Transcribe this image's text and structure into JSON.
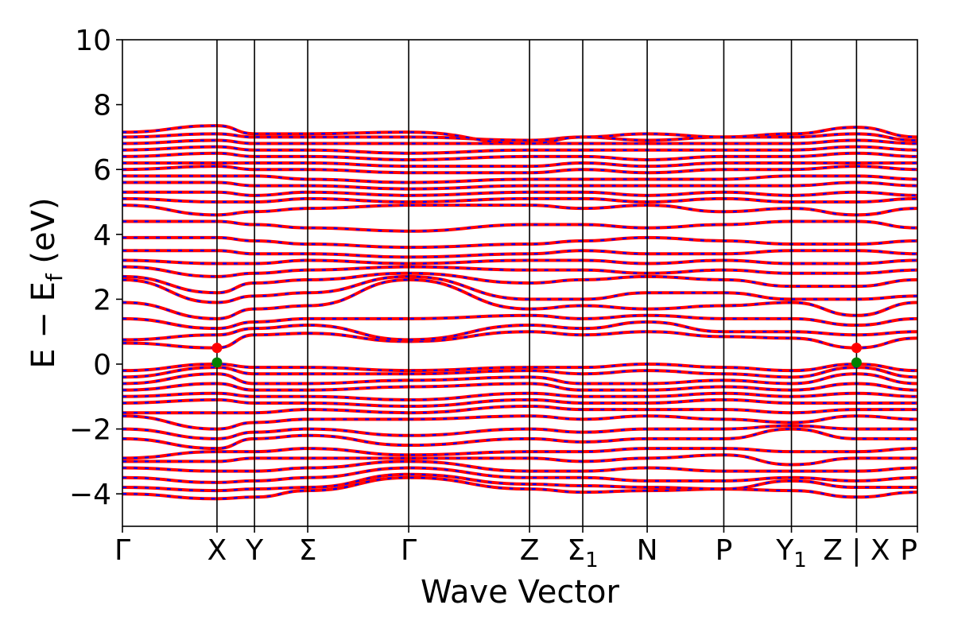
{
  "chart_data": {
    "type": "line",
    "title": "",
    "xlabel": "Wave Vector",
    "ylabel_parts": [
      "E − E",
      "f",
      " (eV)"
    ],
    "ylim": [
      -5,
      10
    ],
    "yticks": [
      "−4",
      "−2",
      "0",
      "2",
      "4",
      "6",
      "8",
      "10"
    ],
    "ytick_values": [
      -4,
      -2,
      0,
      2,
      4,
      6,
      8,
      10
    ],
    "xlim": [
      0,
      2.48
    ],
    "kpoints": [
      {
        "label": "Γ",
        "x": 0.0
      },
      {
        "label": "X",
        "x": 0.295
      },
      {
        "label": "Y",
        "x": 0.412
      },
      {
        "label": "Σ",
        "x": 0.578
      },
      {
        "label": "Γ",
        "x": 0.893
      },
      {
        "label": "Z",
        "x": 1.27
      },
      {
        "label": "Σ",
        "sub": "1",
        "x": 1.436
      },
      {
        "label": "N",
        "x": 1.637
      },
      {
        "label": "P",
        "x": 1.876
      },
      {
        "label": "Y",
        "sub": "1",
        "x": 2.087
      },
      {
        "label": "Z | X",
        "x": 2.29
      },
      {
        "label": "P",
        "x": 2.48
      }
    ],
    "series_colors": {
      "dft": "#ff0000",
      "wannier": "#0000ff"
    },
    "grid": false,
    "markers": [
      {
        "x": 0.295,
        "y": 0.5,
        "color": "#ff0000",
        "meaning": "CBM"
      },
      {
        "x": 0.295,
        "y": 0.05,
        "color": "#008000",
        "meaning": "VBM"
      },
      {
        "x": 2.29,
        "y": 0.5,
        "color": "#ff0000",
        "meaning": "CBM"
      },
      {
        "x": 2.29,
        "y": 0.05,
        "color": "#008000",
        "meaning": "VBM"
      }
    ],
    "bands": [
      {
        "y": [
          -4.0,
          -4.15,
          -4.1,
          -3.9,
          -3.5,
          -3.85,
          -3.95,
          -3.9,
          -3.85,
          -3.9,
          -4.1,
          -3.95
        ]
      },
      {
        "y": [
          -3.8,
          -3.9,
          -3.85,
          -3.8,
          -3.4,
          -3.7,
          -3.75,
          -3.8,
          -3.85,
          -3.6,
          -3.8,
          -3.8
        ]
      },
      {
        "y": [
          -3.5,
          -3.65,
          -3.6,
          -3.5,
          -3.2,
          -3.5,
          -3.5,
          -3.6,
          -3.6,
          -3.5,
          -3.6,
          -3.5
        ]
      },
      {
        "y": [
          -3.2,
          -3.3,
          -3.3,
          -3.2,
          -3.0,
          -3.3,
          -3.3,
          -3.2,
          -3.3,
          -3.3,
          -3.3,
          -3.2
        ]
      },
      {
        "y": [
          -3.0,
          -3.0,
          -2.9,
          -2.9,
          -2.9,
          -2.9,
          -3.0,
          -2.9,
          -2.8,
          -3.1,
          -2.9,
          -2.9
        ]
      },
      {
        "y": [
          -2.9,
          -2.7,
          -2.7,
          -2.6,
          -2.8,
          -2.7,
          -2.7,
          -2.6,
          -2.6,
          -2.7,
          -2.7,
          -2.6
        ]
      },
      {
        "y": [
          -2.3,
          -2.6,
          -2.3,
          -2.2,
          -2.5,
          -2.3,
          -2.4,
          -2.3,
          -2.3,
          -2.0,
          -2.3,
          -2.3
        ]
      },
      {
        "y": [
          -2.0,
          -2.3,
          -2.1,
          -2.0,
          -2.2,
          -2.0,
          -2.1,
          -2.0,
          -2.0,
          -1.9,
          -2.0,
          -2.0
        ]
      },
      {
        "y": [
          -1.6,
          -2.0,
          -1.8,
          -1.7,
          -1.7,
          -1.6,
          -1.7,
          -1.6,
          -1.7,
          -1.8,
          -1.6,
          -1.7
        ]
      },
      {
        "y": [
          -1.5,
          -1.5,
          -1.5,
          -1.4,
          -1.5,
          -1.3,
          -1.4,
          -1.4,
          -1.4,
          -1.5,
          -1.4,
          -1.4
        ]
      },
      {
        "y": [
          -1.2,
          -1.1,
          -1.2,
          -1.2,
          -1.3,
          -1.1,
          -1.2,
          -1.2,
          -1.1,
          -1.2,
          -1.2,
          -1.2
        ]
      },
      {
        "y": [
          -1.0,
          -0.9,
          -1.0,
          -1.0,
          -1.1,
          -0.9,
          -1.0,
          -1.0,
          -0.9,
          -1.0,
          -0.9,
          -1.0
        ]
      },
      {
        "y": [
          -0.8,
          -0.6,
          -0.8,
          -0.8,
          -0.7,
          -0.6,
          -0.8,
          -0.8,
          -0.7,
          -0.8,
          -0.6,
          -0.8
        ]
      },
      {
        "y": [
          -0.6,
          -0.3,
          -0.6,
          -0.6,
          -0.5,
          -0.4,
          -0.6,
          -0.6,
          -0.5,
          -0.6,
          -0.3,
          -0.6
        ]
      },
      {
        "y": [
          -0.4,
          -0.1,
          -0.3,
          -0.3,
          -0.3,
          -0.2,
          -0.3,
          -0.2,
          -0.3,
          -0.4,
          -0.1,
          -0.4
        ]
      },
      {
        "y": [
          -0.2,
          0.0,
          -0.1,
          -0.1,
          -0.2,
          -0.1,
          -0.1,
          0.0,
          -0.1,
          -0.2,
          0.0,
          -0.2
        ]
      },
      {
        "y": [
          0.65,
          0.5,
          0.9,
          0.95,
          0.7,
          1.0,
          0.9,
          1.0,
          0.85,
          0.8,
          0.5,
          0.8
        ]
      },
      {
        "y": [
          0.75,
          0.9,
          1.1,
          1.2,
          0.75,
          1.2,
          1.1,
          1.3,
          1.0,
          1.0,
          0.9,
          1.0
        ]
      },
      {
        "y": [
          1.4,
          1.1,
          1.3,
          1.4,
          1.4,
          1.5,
          1.4,
          1.5,
          1.4,
          1.4,
          1.2,
          1.4
        ]
      },
      {
        "y": [
          1.9,
          1.4,
          1.7,
          1.8,
          2.6,
          1.7,
          1.8,
          1.7,
          1.8,
          1.9,
          1.5,
          1.9
        ]
      },
      {
        "y": [
          2.6,
          1.9,
          2.1,
          2.2,
          2.7,
          2.0,
          2.0,
          2.2,
          2.2,
          2.0,
          2.0,
          2.1
        ]
      },
      {
        "y": [
          2.7,
          2.2,
          2.5,
          2.6,
          2.8,
          2.5,
          2.6,
          2.7,
          2.6,
          2.4,
          2.4,
          2.6
        ]
      },
      {
        "y": [
          3.0,
          2.7,
          2.8,
          2.9,
          3.0,
          2.9,
          2.9,
          2.8,
          2.9,
          2.8,
          2.8,
          2.9
        ]
      },
      {
        "y": [
          3.2,
          3.1,
          3.1,
          3.2,
          3.1,
          3.2,
          3.2,
          3.1,
          3.2,
          3.1,
          3.1,
          3.2
        ]
      },
      {
        "y": [
          3.5,
          3.5,
          3.4,
          3.4,
          3.3,
          3.4,
          3.5,
          3.4,
          3.4,
          3.5,
          3.5,
          3.4
        ]
      },
      {
        "y": [
          3.9,
          3.9,
          3.8,
          3.7,
          3.6,
          3.7,
          3.8,
          3.9,
          3.8,
          3.7,
          3.7,
          3.8
        ]
      },
      {
        "y": [
          4.4,
          4.4,
          4.3,
          4.2,
          4.1,
          4.3,
          4.3,
          4.2,
          4.3,
          4.4,
          4.4,
          4.2
        ]
      },
      {
        "y": [
          4.9,
          4.6,
          4.7,
          4.8,
          4.9,
          4.9,
          4.8,
          4.9,
          4.7,
          4.8,
          4.6,
          4.8
        ]
      },
      {
        "y": [
          5.1,
          5.0,
          5.0,
          5.1,
          5.0,
          5.1,
          5.1,
          5.0,
          5.1,
          5.0,
          5.0,
          5.1
        ]
      },
      {
        "y": [
          5.3,
          5.3,
          5.2,
          5.3,
          5.2,
          5.3,
          5.3,
          5.2,
          5.3,
          5.2,
          5.3,
          5.2
        ]
      },
      {
        "y": [
          5.6,
          5.6,
          5.5,
          5.5,
          5.4,
          5.5,
          5.5,
          5.5,
          5.5,
          5.5,
          5.6,
          5.5
        ]
      },
      {
        "y": [
          5.8,
          5.8,
          5.8,
          5.7,
          5.6,
          5.7,
          5.7,
          5.7,
          5.7,
          5.8,
          5.8,
          5.7
        ]
      },
      {
        "y": [
          6.0,
          6.1,
          6.0,
          6.0,
          5.9,
          5.9,
          6.0,
          5.9,
          6.0,
          6.0,
          6.1,
          6.0
        ]
      },
      {
        "y": [
          6.2,
          6.2,
          6.2,
          6.2,
          6.1,
          6.1,
          6.2,
          6.1,
          6.2,
          6.2,
          6.2,
          6.2
        ]
      },
      {
        "y": [
          6.4,
          6.5,
          6.4,
          6.4,
          6.3,
          6.4,
          6.4,
          6.3,
          6.4,
          6.4,
          6.5,
          6.4
        ]
      },
      {
        "y": [
          6.6,
          6.7,
          6.6,
          6.6,
          6.5,
          6.6,
          6.6,
          6.6,
          6.6,
          6.6,
          6.7,
          6.6
        ]
      },
      {
        "y": [
          6.8,
          6.9,
          6.8,
          6.8,
          6.8,
          6.8,
          6.8,
          6.8,
          6.8,
          6.8,
          6.9,
          6.8
        ]
      },
      {
        "y": [
          7.0,
          7.1,
          7.0,
          7.0,
          7.0,
          6.9,
          7.0,
          6.9,
          7.0,
          7.0,
          7.1,
          6.9
        ]
      },
      {
        "y": [
          7.15,
          7.35,
          7.1,
          7.1,
          7.15,
          6.8,
          7.0,
          7.1,
          7.0,
          7.1,
          7.3,
          7.0
        ]
      }
    ]
  }
}
